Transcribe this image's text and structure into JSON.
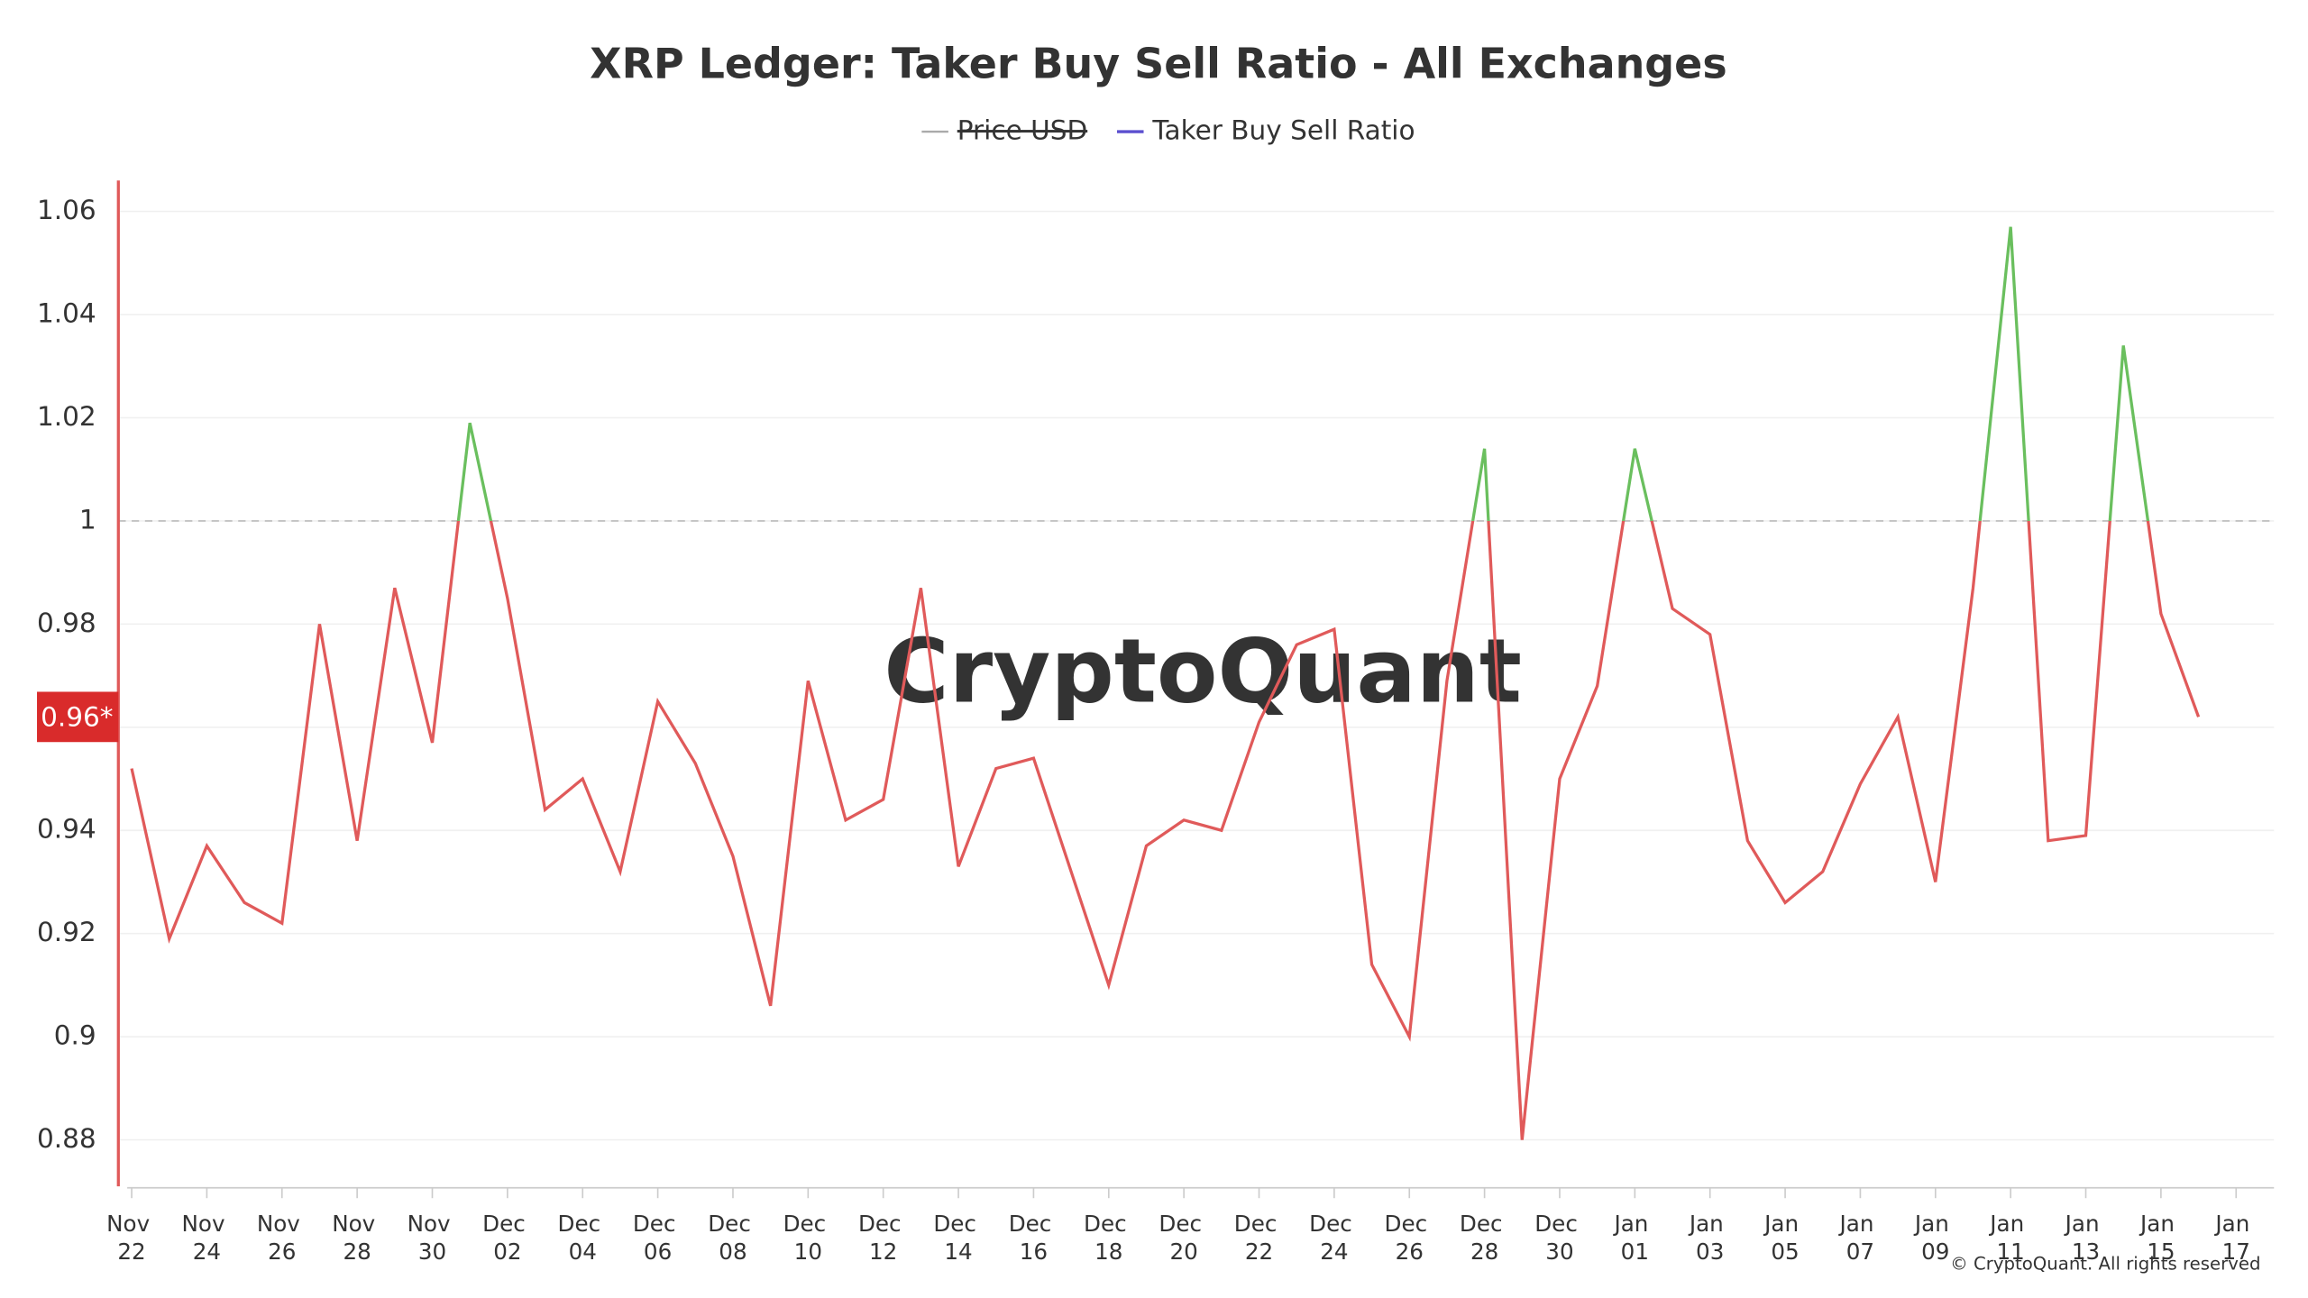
{
  "chart_data": {
    "type": "line",
    "title": "XRP Ledger: Taker Buy Sell Ratio - All Exchanges",
    "hidden_series": [
      {
        "name": "Price USD",
        "color": "#aaaaaa"
      }
    ],
    "categories": [
      "Nov 22",
      null,
      "Nov 24",
      null,
      "Nov 26",
      null,
      "Nov 28",
      null,
      "Nov 30",
      null,
      "Dec 02",
      null,
      "Dec 04",
      null,
      "Dec 06",
      null,
      "Dec 08",
      null,
      "Dec 10",
      null,
      "Dec 12",
      null,
      "Dec 14",
      null,
      "Dec 16",
      null,
      "Dec 18",
      null,
      "Dec 20",
      null,
      "Dec 22",
      null,
      "Dec 24",
      null,
      "Dec 26",
      null,
      "Dec 28",
      null,
      "Dec 30",
      null,
      "Jan 01",
      null,
      "Jan 03",
      null,
      "Jan 05",
      null,
      "Jan 07",
      null,
      "Jan 09",
      null,
      "Jan 11",
      null,
      "Jan 13",
      null,
      "Jan 15",
      null,
      "Jan 17"
    ],
    "series": [
      {
        "name": "Taker Buy Sell Ratio",
        "color": "#5b4fcf",
        "values": [
          0.952,
          0.919,
          0.937,
          0.926,
          0.922,
          0.98,
          0.938,
          0.987,
          0.957,
          1.019,
          0.985,
          0.944,
          0.95,
          0.932,
          0.965,
          0.953,
          0.935,
          0.906,
          0.969,
          0.942,
          0.946,
          0.987,
          0.933,
          0.952,
          0.954,
          0.932,
          0.91,
          0.937,
          0.942,
          0.94,
          0.961,
          0.976,
          0.979,
          0.914,
          0.9,
          0.969,
          1.014,
          0.88,
          0.95,
          0.968,
          1.014,
          0.983,
          0.978,
          0.938,
          0.926,
          0.932,
          0.949,
          0.962,
          0.93,
          0.987,
          1.057,
          0.938,
          0.939,
          1.034,
          0.982,
          0.962,
          null
        ]
      }
    ],
    "threshold": 1,
    "above_color": "#6abf5e",
    "below_color": "#e05a5a",
    "ylim": [
      0.871,
      1.066
    ],
    "yticks": [
      0.88,
      0.9,
      0.92,
      0.94,
      0.96,
      0.98,
      1,
      1.02,
      1.04,
      1.06
    ],
    "current": {
      "value": 0.962,
      "label": "0.96*"
    },
    "grid": true,
    "watermark": "CryptoQuant",
    "copyright": "© CryptoQuant. All rights reserved"
  }
}
